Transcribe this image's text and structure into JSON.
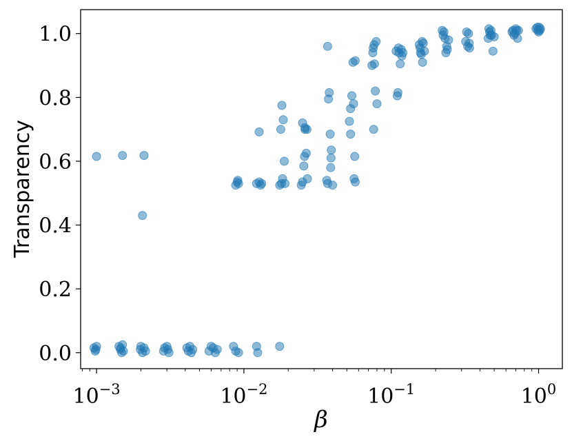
{
  "chart_data": {
    "type": "scatter",
    "xlabel": "β",
    "ylabel": "Transparency",
    "xscale": "log",
    "xlim": [
      0.00078,
      1.45
    ],
    "ylim": [
      -0.05,
      1.075
    ],
    "grid": false,
    "x_ticks": [
      {
        "value": 0.001,
        "label": "10",
        "exp": "−3"
      },
      {
        "value": 0.01,
        "label": "10",
        "exp": "−2"
      },
      {
        "value": 0.1,
        "label": "10",
        "exp": "−1"
      },
      {
        "value": 1,
        "label": "10",
        "exp": "0"
      }
    ],
    "y_ticks": [
      {
        "value": 0.0,
        "label": "0.0"
      },
      {
        "value": 0.2,
        "label": "0.2"
      },
      {
        "value": 0.4,
        "label": "0.4"
      },
      {
        "value": 0.6,
        "label": "0.6"
      },
      {
        "value": 0.8,
        "label": "0.8"
      },
      {
        "value": 1.0,
        "label": "1.0"
      }
    ],
    "series": [
      {
        "color": "#1f77b4",
        "points": [
          [
            0.00096,
            0.015
          ],
          [
            0.00098,
            0.005
          ],
          [
            0.001,
            0.02
          ],
          [
            0.00099,
            0.01
          ],
          [
            0.00142,
            0.02
          ],
          [
            0.00145,
            0.01
          ],
          [
            0.00148,
            0.0
          ],
          [
            0.0015,
            0.025
          ],
          [
            0.00152,
            0.005
          ],
          [
            0.00146,
            0.015
          ],
          [
            0.00198,
            0.01
          ],
          [
            0.002,
            0.02
          ],
          [
            0.00205,
            0.0
          ],
          [
            0.0021,
            0.015
          ],
          [
            0.00215,
            0.005
          ],
          [
            0.00285,
            0.005
          ],
          [
            0.0029,
            0.015
          ],
          [
            0.003,
            0.02
          ],
          [
            0.0031,
            0.0
          ],
          [
            0.00305,
            0.01
          ],
          [
            0.0041,
            0.015
          ],
          [
            0.0042,
            0.005
          ],
          [
            0.0043,
            0.02
          ],
          [
            0.0044,
            0.0
          ],
          [
            0.0045,
            0.01
          ],
          [
            0.0058,
            0.005
          ],
          [
            0.006,
            0.02
          ],
          [
            0.0062,
            0.015
          ],
          [
            0.0064,
            0.0
          ],
          [
            0.0066,
            0.01
          ],
          [
            0.0085,
            0.02
          ],
          [
            0.0088,
            0.005
          ],
          [
            0.0092,
            0.0
          ],
          [
            0.0122,
            0.02
          ],
          [
            0.0124,
            0.0
          ],
          [
            0.0175,
            0.02
          ],
          [
            0.001,
            0.615
          ],
          [
            0.0015,
            0.618
          ],
          [
            0.0021,
            0.618
          ],
          [
            0.00205,
            0.43
          ],
          [
            0.0088,
            0.525
          ],
          [
            0.009,
            0.535
          ],
          [
            0.0091,
            0.54
          ],
          [
            0.0092,
            0.53
          ],
          [
            0.0122,
            0.53
          ],
          [
            0.0127,
            0.535
          ],
          [
            0.013,
            0.525
          ],
          [
            0.0132,
            0.53
          ],
          [
            0.0127,
            0.692
          ],
          [
            0.0175,
            0.525
          ],
          [
            0.018,
            0.53
          ],
          [
            0.0183,
            0.545
          ],
          [
            0.019,
            0.53
          ],
          [
            0.0185,
            0.73
          ],
          [
            0.0188,
            0.6
          ],
          [
            0.0178,
            0.7
          ],
          [
            0.0181,
            0.775
          ],
          [
            0.0245,
            0.525
          ],
          [
            0.025,
            0.535
          ],
          [
            0.0255,
            0.585
          ],
          [
            0.0258,
            0.615
          ],
          [
            0.026,
            0.7
          ],
          [
            0.0265,
            0.625
          ],
          [
            0.0268,
            0.7
          ],
          [
            0.027,
            0.545
          ],
          [
            0.025,
            0.72
          ],
          [
            0.026,
            0.705
          ],
          [
            0.0365,
            0.54
          ],
          [
            0.037,
            0.96
          ],
          [
            0.0375,
            0.795
          ],
          [
            0.038,
            0.815
          ],
          [
            0.0385,
            0.685
          ],
          [
            0.0388,
            0.58
          ],
          [
            0.039,
            0.61
          ],
          [
            0.0392,
            0.635
          ],
          [
            0.04,
            0.525
          ],
          [
            0.037,
            0.53
          ],
          [
            0.052,
            0.725
          ],
          [
            0.053,
            0.685
          ],
          [
            0.053,
            0.765
          ],
          [
            0.054,
            0.805
          ],
          [
            0.055,
            0.91
          ],
          [
            0.0555,
            0.78
          ],
          [
            0.056,
            0.545
          ],
          [
            0.0565,
            0.615
          ],
          [
            0.057,
            0.535
          ],
          [
            0.057,
            0.915
          ],
          [
            0.074,
            0.9
          ],
          [
            0.075,
            0.94
          ],
          [
            0.0755,
            0.955
          ],
          [
            0.076,
            0.7
          ],
          [
            0.0765,
            0.965
          ],
          [
            0.077,
            0.905
          ],
          [
            0.078,
            0.82
          ],
          [
            0.079,
            0.975
          ],
          [
            0.08,
            0.78
          ],
          [
            0.108,
            0.945
          ],
          [
            0.11,
            0.805
          ],
          [
            0.111,
            0.815
          ],
          [
            0.112,
            0.955
          ],
          [
            0.113,
            0.94
          ],
          [
            0.115,
            0.905
          ],
          [
            0.117,
            0.95
          ],
          [
            0.118,
            0.93
          ],
          [
            0.12,
            0.94
          ],
          [
            0.155,
            0.965
          ],
          [
            0.157,
            0.955
          ],
          [
            0.158,
            0.94
          ],
          [
            0.16,
            0.935
          ],
          [
            0.162,
            0.975
          ],
          [
            0.163,
            0.91
          ],
          [
            0.165,
            0.97
          ],
          [
            0.168,
            0.945
          ],
          [
            0.222,
            1.01
          ],
          [
            0.225,
            0.995
          ],
          [
            0.228,
            1.005
          ],
          [
            0.232,
            0.985
          ],
          [
            0.235,
            0.94
          ],
          [
            0.238,
            0.96
          ],
          [
            0.24,
            0.95
          ],
          [
            0.245,
            0.98
          ],
          [
            0.32,
            0.975
          ],
          [
            0.325,
            1.005
          ],
          [
            0.33,
            0.96
          ],
          [
            0.335,
            1.0
          ],
          [
            0.338,
            0.97
          ],
          [
            0.34,
            0.955
          ],
          [
            0.455,
            0.985
          ],
          [
            0.46,
            1.015
          ],
          [
            0.465,
            1.005
          ],
          [
            0.47,
            0.995
          ],
          [
            0.475,
            1.01
          ],
          [
            0.48,
            0.995
          ],
          [
            0.49,
            0.945
          ],
          [
            0.5,
            0.99
          ],
          [
            0.66,
            1.005
          ],
          [
            0.67,
            1.01
          ],
          [
            0.68,
            0.995
          ],
          [
            0.69,
            1.0
          ],
          [
            0.7,
            1.015
          ],
          [
            0.71,
            1.01
          ],
          [
            0.72,
            0.985
          ],
          [
            0.73,
            1.01
          ],
          [
            0.96,
            1.015
          ],
          [
            0.98,
            1.02
          ],
          [
            0.99,
            1.01
          ],
          [
            1.0,
            1.005
          ],
          [
            1.01,
            1.02
          ],
          [
            1.02,
            1.01
          ],
          [
            1.03,
            1.015
          ]
        ]
      }
    ]
  }
}
